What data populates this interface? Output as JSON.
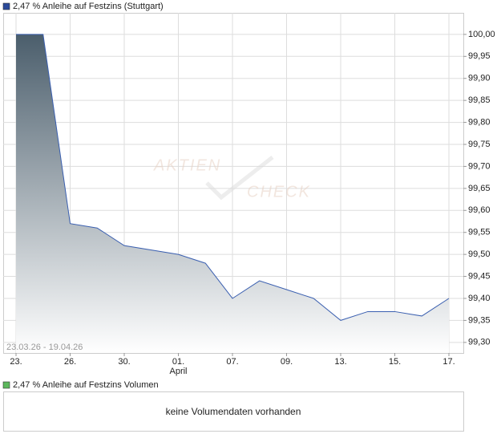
{
  "chart_data": {
    "type": "area",
    "legend": "2,47 % Anleihe auf Festzins (Stuttgart)",
    "legend_color": "#2b4a9a",
    "date_range": "23.03.26 - 19.04.26",
    "watermark": [
      "Aktien",
      "Check"
    ],
    "categories": [
      "23.",
      null,
      "26.",
      null,
      "30.",
      null,
      "01.",
      null,
      "07.",
      null,
      "09.",
      null,
      "13.",
      null,
      "15.",
      null,
      "17."
    ],
    "x_sublabels": [
      null,
      null,
      null,
      null,
      null,
      null,
      "April",
      null,
      null,
      null,
      null,
      null,
      null,
      null,
      null,
      null,
      null
    ],
    "values": [
      100.0,
      100.0,
      99.57,
      99.56,
      99.52,
      99.51,
      99.5,
      99.48,
      99.4,
      99.44,
      99.42,
      99.4,
      99.35,
      99.37,
      99.37,
      99.36,
      99.4
    ],
    "color": "#3a5fb0",
    "fill_top": "#4b5e6c",
    "fill_bottom": "#ffffff",
    "ylim": [
      99.276,
      100.049
    ],
    "yticks": [
      {
        "value": 99.3,
        "label": "99,30"
      },
      {
        "value": 99.35,
        "label": "99,35"
      },
      {
        "value": 99.4,
        "label": "99,40"
      },
      {
        "value": 99.45,
        "label": "99,45"
      },
      {
        "value": 99.5,
        "label": "99,50"
      },
      {
        "value": 99.55,
        "label": "99,55"
      },
      {
        "value": 99.6,
        "label": "99,60"
      },
      {
        "value": 99.65,
        "label": "99,65"
      },
      {
        "value": 99.7,
        "label": "99,70"
      },
      {
        "value": 99.75,
        "label": "99,75"
      },
      {
        "value": 99.8,
        "label": "99,80"
      },
      {
        "value": 99.85,
        "label": "99,85"
      },
      {
        "value": 99.9,
        "label": "99,90"
      },
      {
        "value": 99.95,
        "label": "99,95"
      },
      {
        "value": 100.0,
        "label": "100,00"
      }
    ],
    "grid": true
  },
  "volume_panel": {
    "legend": "2,47 % Anleihe auf Festzins Volumen",
    "legend_color": "#5cb85c",
    "message": "keine Volumendaten vorhanden"
  }
}
